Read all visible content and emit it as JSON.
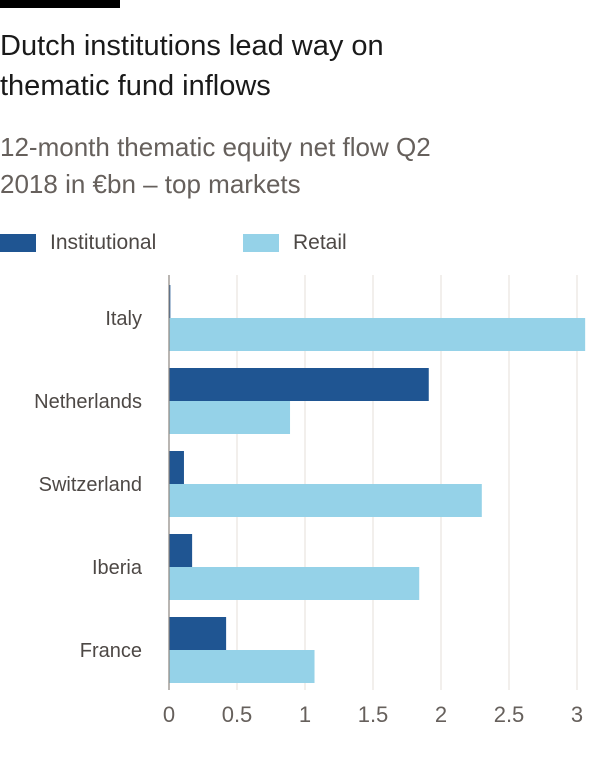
{
  "header": {
    "title_line1": "Dutch institutions lead way on",
    "title_line2": "thematic fund inflows",
    "subtitle_line1": "12-month thematic equity net flow Q2",
    "subtitle_line2": "2018 in €bn – top markets"
  },
  "colors": {
    "institutional": "#1f5592",
    "retail": "#95d2e8",
    "grid": "#e6dfd8",
    "zero_line": "#8c8580"
  },
  "chart_data": {
    "type": "bar",
    "orientation": "horizontal",
    "title": "Dutch institutions lead way on thematic fund inflows",
    "subtitle": "12-month thematic equity net flow Q2 2018 in €bn – top markets",
    "categories": [
      "Italy",
      "Netherlands",
      "Switzerland",
      "Iberia",
      "France"
    ],
    "series": [
      {
        "name": "Institutional",
        "values": [
          0.01,
          1.91,
          0.11,
          0.17,
          0.42
        ]
      },
      {
        "name": "Retail",
        "values": [
          3.06,
          0.89,
          2.3,
          1.84,
          1.07
        ]
      }
    ],
    "xlim": [
      0,
      3.1
    ],
    "xticks": [
      0,
      0.5,
      1,
      1.5,
      2,
      2.5,
      3
    ],
    "xtick_labels": [
      "0",
      "0.5",
      "1",
      "1.5",
      "2",
      "2.5",
      "3"
    ],
    "xlabel": "",
    "ylabel": "",
    "grid": "vertical",
    "legend": "top-left"
  }
}
